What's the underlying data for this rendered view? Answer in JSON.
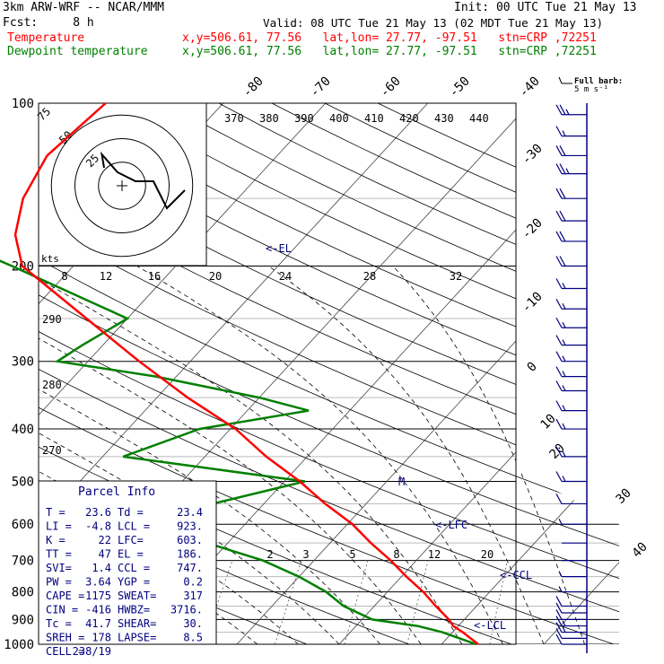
{
  "header": {
    "model": "3km ARW-WRF -- NCAR/MMM",
    "init": "Init: 00 UTC Tue 21 May 13",
    "fcst": "Fcst:     8 h",
    "valid": "Valid: 08 UTC Tue 21 May 13 (02 MDT Tue 21 May 13)",
    "temp_label": "Temperature",
    "dew_label": "Dewpoint temperature",
    "location": "x,y=506.61, 77.56   lat,lon= 27.77, -97.51   stn=CRP ,72251"
  },
  "barb_legend": {
    "line1": "Full barb:",
    "line2": "5 m s⁻¹"
  },
  "colors": {
    "temperature": "#ff0000",
    "dewpoint": "#008000",
    "wind": "#000080",
    "text": "#000000"
  },
  "chart_data": {
    "type": "line",
    "y_axis": "pressure (hPa), log scale",
    "y_ticks": [
      "100",
      "200",
      "300",
      "400",
      "500",
      "600",
      "700",
      "800",
      "900",
      "1000"
    ],
    "isotherm_labels_top": [
      "-80",
      "-70",
      "-60",
      "-50",
      "-40"
    ],
    "isotherm_labels_right": [
      "-30",
      "-20",
      "-10",
      "0",
      "10",
      "20",
      "30",
      "40"
    ],
    "theta_labels": [
      "370",
      "380",
      "390",
      "400",
      "410",
      "420",
      "430",
      "440"
    ],
    "theta_e_labels": [
      "290",
      "280",
      "270"
    ],
    "mixing_ratio_labels": [
      "2",
      "3",
      "5",
      "8",
      "12",
      "20"
    ],
    "hodograph": {
      "unit": "kts",
      "ring_labels": [
        "25",
        "50",
        "75"
      ],
      "speed_ticks": [
        "8",
        "12",
        "16",
        "20",
        "24",
        "28",
        "32"
      ]
    },
    "series": [
      {
        "name": "Temperature",
        "p": [
          1000,
          950,
          925,
          900,
          850,
          800,
          750,
          700,
          650,
          600,
          550,
          500,
          450,
          400,
          350,
          300,
          250,
          200,
          175,
          150,
          125,
          100
        ],
        "t": [
          23.6,
          21,
          19.5,
          18.5,
          16,
          13.5,
          10.5,
          7.5,
          4,
          0.5,
          -4,
          -8.5,
          -14,
          -19.5,
          -27,
          -35,
          -44,
          -55,
          -58.5,
          -61,
          -62.5,
          -61.5
        ]
      },
      {
        "name": "Dewpoint temperature",
        "p": [
          1000,
          950,
          925,
          900,
          850,
          800,
          750,
          700,
          650,
          600,
          550,
          500,
          450,
          400,
          370,
          350,
          320,
          300,
          280,
          250,
          230,
          200,
          175,
          150,
          130,
          100
        ],
        "t": [
          23.4,
          19,
          16,
          11,
          7,
          4,
          0,
          -5,
          -12,
          -20,
          -15,
          -8,
          -28,
          -23,
          -14,
          -20,
          -32,
          -43,
          -42,
          -40,
          -46,
          -56,
          -66,
          -77,
          -80,
          -79
        ]
      }
    ],
    "annotations": [
      "<-EL",
      "M",
      "<-LFC",
      "<-CCL",
      "<-LCL"
    ],
    "wind_profile": [
      {
        "p": 1000,
        "speed": 12,
        "dir": 170
      },
      {
        "p": 975,
        "speed": 14,
        "dir": 170
      },
      {
        "p": 950,
        "speed": 15,
        "dir": 175
      },
      {
        "p": 925,
        "speed": 15,
        "dir": 180
      },
      {
        "p": 900,
        "speed": 14,
        "dir": 185
      },
      {
        "p": 875,
        "speed": 12,
        "dir": 190
      },
      {
        "p": 850,
        "speed": 10,
        "dir": 195
      },
      {
        "p": 800,
        "speed": 7,
        "dir": 210
      },
      {
        "p": 750,
        "speed": 5,
        "dir": 225
      },
      {
        "p": 700,
        "speed": 3,
        "dir": 240
      },
      {
        "p": 650,
        "speed": 2,
        "dir": 260
      },
      {
        "p": 600,
        "speed": 5,
        "dir": 290
      },
      {
        "p": 550,
        "speed": 10,
        "dir": 280
      },
      {
        "p": 500,
        "speed": 15,
        "dir": 280
      },
      {
        "p": 450,
        "speed": 15,
        "dir": 280
      },
      {
        "p": 400,
        "speed": 15,
        "dir": 280
      },
      {
        "p": 370,
        "speed": 15,
        "dir": 285
      },
      {
        "p": 340,
        "speed": 15,
        "dir": 285
      },
      {
        "p": 320,
        "speed": 15,
        "dir": 285
      },
      {
        "p": 300,
        "speed": 15,
        "dir": 285
      },
      {
        "p": 280,
        "speed": 15,
        "dir": 285
      },
      {
        "p": 260,
        "speed": 15,
        "dir": 280
      },
      {
        "p": 240,
        "speed": 15,
        "dir": 280
      },
      {
        "p": 220,
        "speed": 15,
        "dir": 280
      },
      {
        "p": 200,
        "speed": 20,
        "dir": 280
      },
      {
        "p": 180,
        "speed": 20,
        "dir": 280
      },
      {
        "p": 165,
        "speed": 20,
        "dir": 280
      },
      {
        "p": 150,
        "speed": 20,
        "dir": 280
      },
      {
        "p": 135,
        "speed": 25,
        "dir": 280
      },
      {
        "p": 125,
        "speed": 20,
        "dir": 280
      },
      {
        "p": 115,
        "speed": 15,
        "dir": 280
      },
      {
        "p": 105,
        "speed": 25,
        "dir": 280
      }
    ],
    "hodograph_trace": [
      [
        -8,
        8
      ],
      [
        -9,
        14
      ],
      [
        -2,
        6
      ],
      [
        6,
        2
      ],
      [
        14,
        2
      ],
      [
        20,
        -10
      ],
      [
        28,
        -2
      ]
    ],
    "parcel_info": {
      "title": "Parcel Info",
      "rows": [
        [
          "T  =",
          "23.6",
          "Td =",
          "23.4"
        ],
        [
          "LI =",
          "-4.8",
          "LCL =",
          "923."
        ],
        [
          "K  =",
          "22",
          "LFC=",
          "603."
        ],
        [
          "TT =",
          "47",
          "EL =",
          "186."
        ],
        [
          "SVI=",
          "1.4",
          "CCL =",
          "747."
        ],
        [
          "PW =",
          "3.64",
          "YGP =",
          "0.2"
        ],
        [
          "CAPE =",
          "1175",
          "SWEAT=",
          "317"
        ],
        [
          "CIN =",
          "-416",
          "HWBZ=",
          "3716."
        ],
        [
          "Tc =",
          "41.7",
          "SHEAR=",
          "30."
        ],
        [
          "SREH =",
          "178",
          "LAPSE=",
          "8.5"
        ],
        [
          "CELL =",
          "238/19",
          "",
          ""
        ]
      ]
    }
  }
}
